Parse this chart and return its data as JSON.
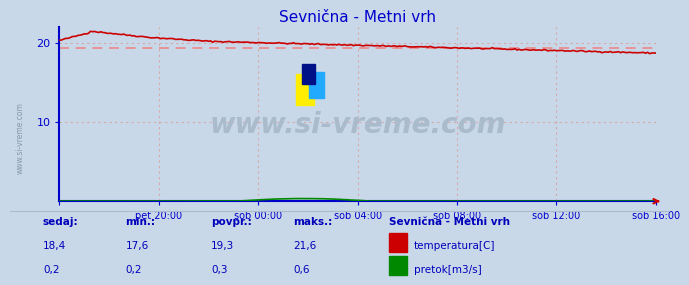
{
  "title": "Sevnična - Metni vrh",
  "bg_color": "#c8d8e8",
  "plot_bg_color": "#c8d8e8",
  "grid_color": "#d8a8a8",
  "ylim": [
    0,
    22
  ],
  "yticks": [
    10,
    20
  ],
  "xlabel_ticks": [
    "pet 20:00",
    "sob 00:00",
    "sob 04:00",
    "sob 08:00",
    "sob 12:00",
    "sob 16:00"
  ],
  "temp_avg": 19.3,
  "temp_color": "#cc0000",
  "temp_avg_color": "#ee8888",
  "flow_color": "#008800",
  "axis_color": "#0000cc",
  "title_color": "#0000cc",
  "watermark": "www.si-vreme.com",
  "watermark_color": "#aabbcc",
  "watermark_fontsize": 20,
  "footer_label_color": "#0000bb",
  "footer_value_color": "#0000bb",
  "sedaj_label": "sedaj:",
  "min_label": "min.:",
  "povpr_label": "povpr.:",
  "maks_label": "maks.:",
  "station_label": "Sevnična - Metni vrh",
  "temp_legend": "temperatura[C]",
  "flow_legend": "pretok[m3/s]",
  "temp_sedaj": "18,4",
  "temp_min": "17,6",
  "temp_povpr": "19,3",
  "temp_maks": "21,6",
  "flow_sedaj": "0,2",
  "flow_min": "0,2",
  "flow_povpr": "0,3",
  "flow_maks": "0,6",
  "n_points": 289
}
